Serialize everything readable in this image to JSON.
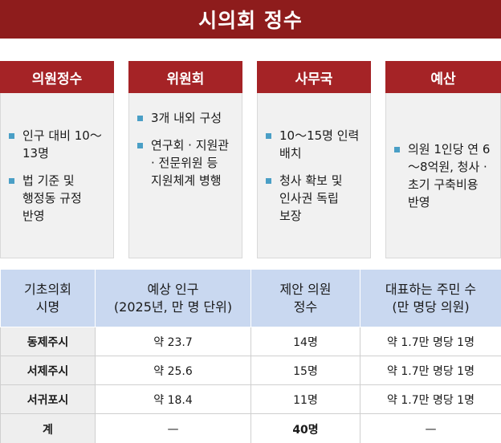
{
  "title": "시의회 정수",
  "cards": [
    {
      "header": "의원정수",
      "bullets": [
        "인구 대비 10～13명",
        "법 기준 및 행정동 규정 반영"
      ]
    },
    {
      "header": "위원회",
      "bullets": [
        "3개 내외 구성",
        "연구회 · 지원관 · 전문위원 등 지원체계 병행"
      ]
    },
    {
      "header": "사무국",
      "bullets": [
        "10～15명 인력 배치",
        "청사 확보 및 인사권 독립 보장"
      ]
    },
    {
      "header": "예산",
      "bullets": [
        "의원 1인당 연 6～8억원, 청사 · 초기 구축비용 반영"
      ]
    }
  ],
  "table": {
    "headers": [
      [
        "기초의회",
        "시명"
      ],
      [
        "예상 인구",
        "(2025년, 만 명 단위)"
      ],
      [
        "제안 의원",
        "정수"
      ],
      [
        "대표하는 주민 수",
        "(만 명당 의원)"
      ]
    ],
    "rows": [
      [
        "동제주시",
        "약 23.7",
        "14명",
        "약 1.7만 명당 1명"
      ],
      [
        "서제주시",
        "약 25.6",
        "15명",
        "약 1.7만 명당 1명"
      ],
      [
        "서귀포시",
        "약 18.4",
        "11명",
        "약 1.7만 명당 1명"
      ]
    ],
    "total": [
      "계",
      "—",
      "40명",
      "—"
    ]
  },
  "colors": {
    "title_bg": "#8e1c1c",
    "card_header_bg": "#a52326",
    "bullet": "#4a9fc6",
    "table_header_bg": "#c9d8f0"
  }
}
